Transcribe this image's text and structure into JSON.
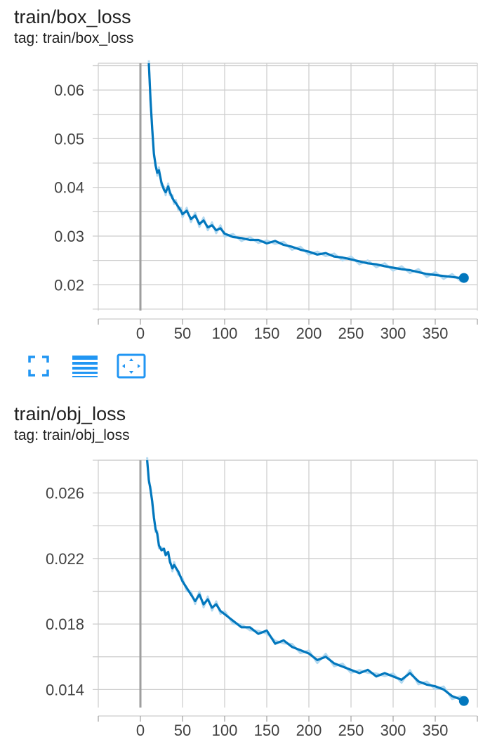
{
  "colors": {
    "line": "#0277bd",
    "raw_line": "#b3d9f0",
    "grid": "#cccccc",
    "zero_line": "#9e9e9e",
    "accent": "#2196f3"
  },
  "cards": [
    {
      "title": "train/box_loss",
      "tag": "tag: train/box_loss"
    },
    {
      "title": "train/obj_loss",
      "tag": "tag: train/obj_loss"
    }
  ],
  "toolbar": {
    "buttons": [
      {
        "icon": "fullscreen-icon"
      },
      {
        "icon": "data-table-icon"
      },
      {
        "icon": "fit-domain-icon"
      }
    ]
  },
  "chart_data": [
    {
      "type": "line",
      "title": "train/box_loss",
      "xlabel": "",
      "ylabel": "",
      "xlim": [
        -50,
        400
      ],
      "ylim": [
        0.0147,
        0.0655
      ],
      "x_ticks": [
        0,
        50,
        100,
        150,
        200,
        250,
        300,
        350
      ],
      "x_tick_labels": [
        "0",
        "50",
        "100",
        "150",
        "200",
        "250",
        "300",
        "350"
      ],
      "y_ticks": [
        0.02,
        0.03,
        0.04,
        0.05,
        0.06
      ],
      "y_tick_labels": [
        "0.02",
        "0.03",
        "0.04",
        "0.05",
        "0.06"
      ],
      "grid": true,
      "series": [
        {
          "x": [
            10,
            12,
            14,
            16,
            18,
            20,
            22,
            25,
            28,
            30,
            33,
            35,
            38,
            40,
            42,
            45,
            48,
            50,
            55,
            60,
            65,
            70,
            75,
            80,
            85,
            90,
            95,
            100,
            110,
            120,
            130,
            140,
            150,
            160,
            170,
            180,
            190,
            200,
            210,
            220,
            230,
            240,
            250,
            260,
            270,
            280,
            290,
            300,
            310,
            320,
            330,
            340,
            350,
            360,
            370,
            380,
            384
          ],
          "y": [
            0.0655,
            0.058,
            0.052,
            0.047,
            0.0445,
            0.043,
            0.0435,
            0.041,
            0.0395,
            0.039,
            0.0402,
            0.039,
            0.0378,
            0.0372,
            0.0368,
            0.036,
            0.0352,
            0.0345,
            0.0352,
            0.0335,
            0.0342,
            0.0325,
            0.0332,
            0.0318,
            0.0322,
            0.0312,
            0.0316,
            0.0305,
            0.0298,
            0.0296,
            0.0292,
            0.0292,
            0.0285,
            0.029,
            0.0282,
            0.0278,
            0.0272,
            0.0268,
            0.0262,
            0.0265,
            0.0258,
            0.0256,
            0.0252,
            0.0248,
            0.0244,
            0.0242,
            0.0238,
            0.0235,
            0.0232,
            0.023,
            0.0226,
            0.0222,
            0.022,
            0.0218,
            0.0216,
            0.0214,
            0.0214
          ]
        }
      ]
    },
    {
      "type": "line",
      "title": "train/obj_loss",
      "xlabel": "",
      "ylabel": "",
      "xlim": [
        -50,
        400
      ],
      "ylim": [
        0.0129,
        0.028
      ],
      "x_ticks": [
        0,
        50,
        100,
        150,
        200,
        250,
        300,
        350
      ],
      "x_tick_labels": [
        "0",
        "50",
        "100",
        "150",
        "200",
        "250",
        "300",
        "350"
      ],
      "y_ticks": [
        0.014,
        0.018,
        0.022,
        0.026
      ],
      "y_tick_labels": [
        "0.014",
        "0.018",
        "0.022",
        "0.026"
      ],
      "grid": true,
      "series": [
        {
          "x": [
            8,
            10,
            12,
            14,
            16,
            18,
            20,
            22,
            25,
            28,
            30,
            33,
            35,
            38,
            40,
            45,
            50,
            55,
            60,
            65,
            70,
            75,
            80,
            85,
            90,
            95,
            100,
            110,
            120,
            130,
            140,
            150,
            160,
            170,
            180,
            190,
            200,
            210,
            220,
            230,
            240,
            250,
            260,
            270,
            280,
            290,
            300,
            310,
            320,
            330,
            340,
            350,
            360,
            370,
            380,
            384
          ],
          "y": [
            0.028,
            0.0268,
            0.0262,
            0.0255,
            0.0245,
            0.0238,
            0.0235,
            0.0228,
            0.0225,
            0.0226,
            0.0222,
            0.0224,
            0.0218,
            0.0214,
            0.0216,
            0.0212,
            0.0206,
            0.0202,
            0.0198,
            0.0194,
            0.0198,
            0.0192,
            0.0195,
            0.019,
            0.0192,
            0.0188,
            0.0186,
            0.0182,
            0.0178,
            0.0178,
            0.0174,
            0.0176,
            0.0168,
            0.017,
            0.0166,
            0.0164,
            0.0162,
            0.0158,
            0.016,
            0.0156,
            0.0154,
            0.0152,
            0.015,
            0.0152,
            0.0148,
            0.015,
            0.0148,
            0.0146,
            0.015,
            0.0145,
            0.0143,
            0.0142,
            0.014,
            0.0136,
            0.0134,
            0.0133
          ]
        }
      ]
    }
  ]
}
